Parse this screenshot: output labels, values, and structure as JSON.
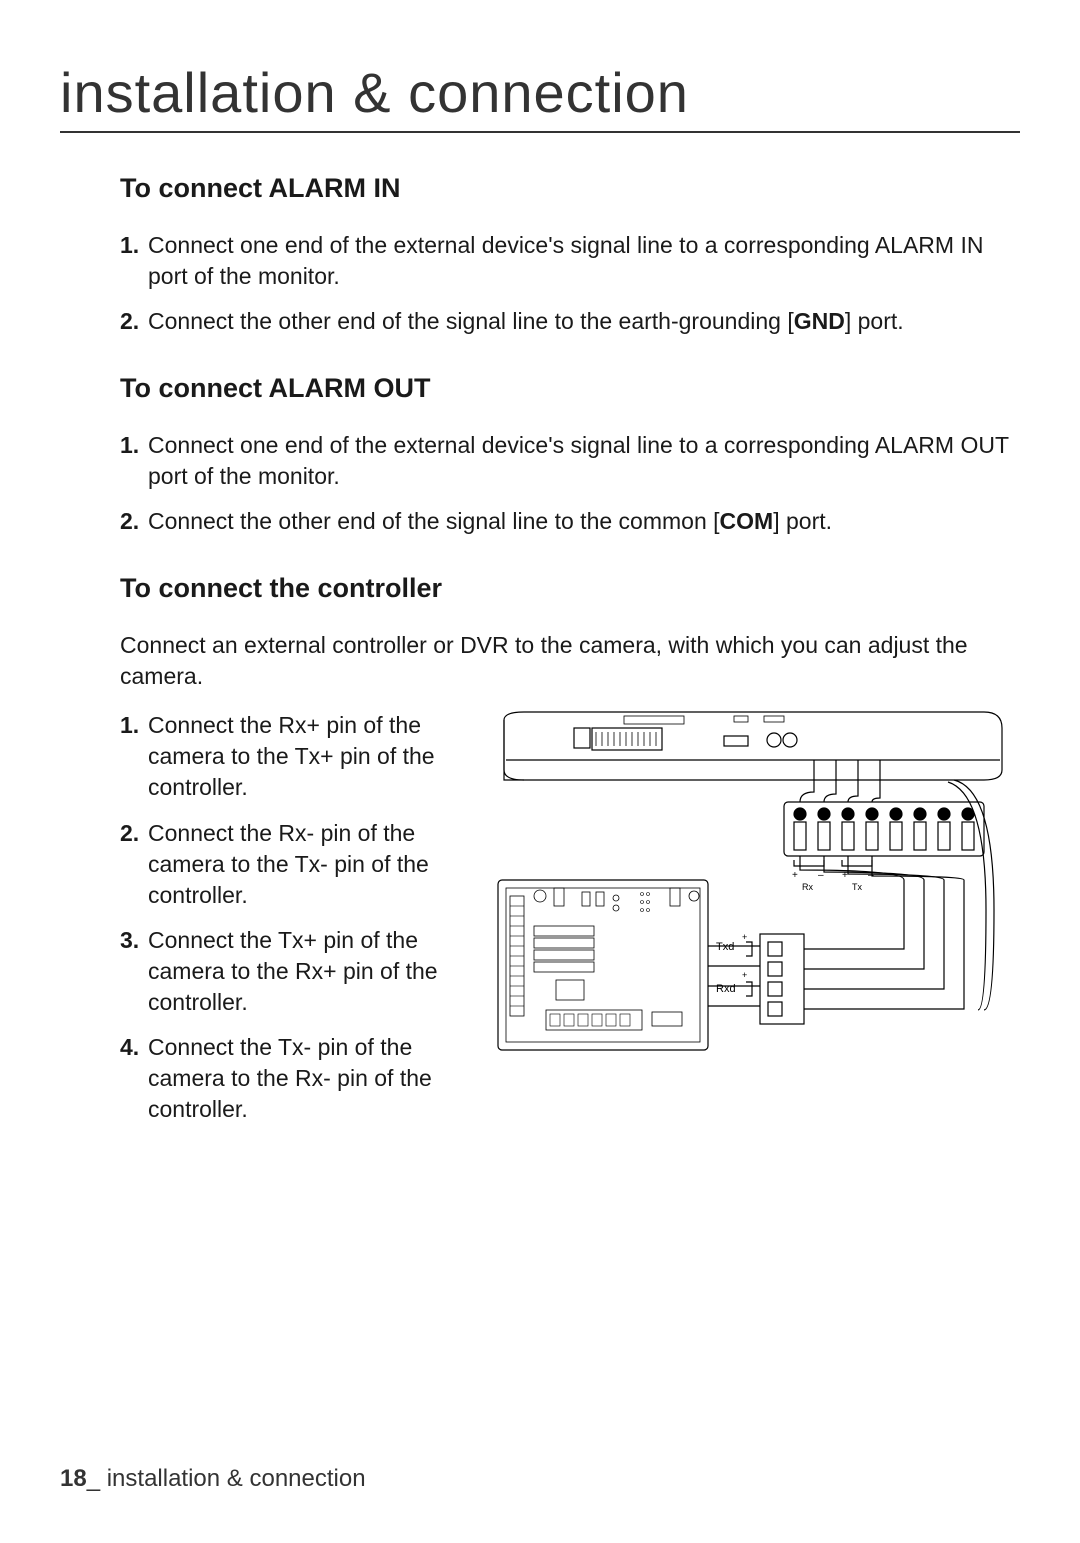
{
  "page": {
    "title": "installation & connection",
    "footer_page": "18",
    "footer_text": "_ installation & connection"
  },
  "sections": {
    "alarm_in": {
      "heading": "To connect ALARM IN",
      "steps": [
        "Connect one end of the external device's signal line to a corresponding ALARM IN port of the monitor.",
        "Connect the other end of the signal line to the earth-grounding [GND] port."
      ],
      "bold_tokens": [
        "GND"
      ]
    },
    "alarm_out": {
      "heading": "To connect ALARM OUT",
      "steps": [
        "Connect one end of the external device's signal line to a corresponding ALARM OUT port of the monitor.",
        "Connect the other end of the signal line to the common [COM] port."
      ],
      "bold_tokens": [
        "COM"
      ]
    },
    "controller": {
      "heading": "To connect the controller",
      "intro": "Connect an external controller or DVR to the camera, with which you can adjust the camera.",
      "steps": [
        "Connect the Rx+ pin of the camera to the Tx+ pin of the controller.",
        "Connect the Rx- pin of the camera to the Tx- pin of the controller.",
        "Connect the Tx+ pin of the camera to the Rx+ pin of the controller.",
        "Connect the Tx- pin of the camera to the Rx- pin of the controller."
      ]
    }
  },
  "diagram": {
    "type": "wiring-diagram",
    "background_color": "#ffffff",
    "stroke_color": "#000000",
    "stroke_width": 1.2,
    "labels": {
      "txd": "Txd",
      "rxd": "Rxd",
      "plus": "+",
      "minus": "–",
      "rx": "Rx",
      "tx": "Tx"
    },
    "font_size_small": 9,
    "font_size_label": 11
  }
}
